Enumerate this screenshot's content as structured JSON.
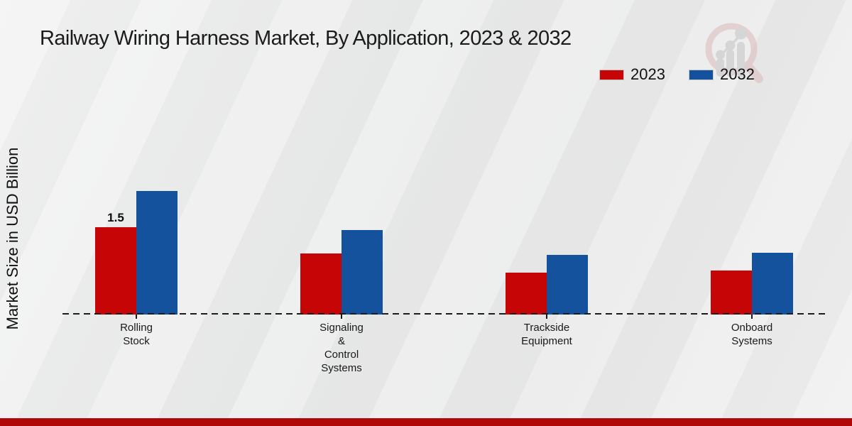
{
  "header": {
    "title": "Railway Wiring Harness Market, By Application, 2023 & 2032"
  },
  "y_axis": {
    "label": "Market Size in USD Billion"
  },
  "legend": {
    "items": [
      {
        "label": "2023",
        "color": "#c60606"
      },
      {
        "label": "2032",
        "color": "#15529d"
      }
    ]
  },
  "chart_data": {
    "type": "bar",
    "title": "Railway Wiring Harness Market, By Application, 2023 & 2032",
    "categories": [
      "Rolling\nStock",
      "Signaling\n&\nControl\nSystems",
      "Trackside\nEquipment",
      "Onboard\nSystems"
    ],
    "series": [
      {
        "name": "2023",
        "color": "#c60606",
        "values": [
          1.5,
          1.05,
          0.72,
          0.75
        ],
        "data_labels": [
          "1.5",
          null,
          null,
          null
        ]
      },
      {
        "name": "2032",
        "color": "#15529d",
        "values": [
          2.12,
          1.45,
          1.02,
          1.06
        ],
        "data_labels": [
          null,
          null,
          null,
          null
        ]
      }
    ],
    "xlabel": "",
    "ylabel": "Market Size in USD Billion",
    "ylim": [
      0,
      2.6
    ],
    "grid": false,
    "legend_position": "top-right",
    "x_axis_style": "dashed-baseline",
    "shown_data_labels": [
      "1.5"
    ]
  },
  "footer": {
    "accent_color": "#b00707"
  }
}
